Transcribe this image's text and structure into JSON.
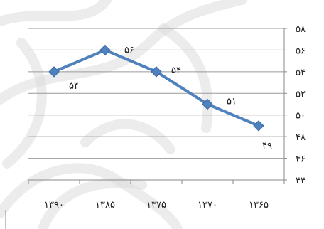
{
  "chart_data": {
    "type": "line",
    "title": "",
    "xlabel": "",
    "ylabel": "",
    "categories": [
      "۱۳۹۰",
      "۱۳۸۵",
      "۱۳۷۵",
      "۱۳۷۰",
      "۱۳۶۵"
    ],
    "series": [
      {
        "values": [
          54,
          56,
          54,
          51,
          49
        ],
        "data_labels": [
          "۵۴",
          "۵۶",
          "۵۴",
          "۵۱",
          "۴۹"
        ],
        "color": "#4f81bd",
        "marker": "diamond"
      }
    ],
    "ylim": [
      44,
      58
    ],
    "ytick_values": [
      44,
      46,
      48,
      50,
      52,
      54,
      56,
      58
    ],
    "ytick_labels": [
      "۴۴",
      "۴۶",
      "۴۸",
      "۵۰",
      "۵۲",
      "۵۴",
      "۵۶",
      "۵۸"
    ],
    "y_axis_side": "right",
    "grid": true,
    "legend": "none"
  }
}
